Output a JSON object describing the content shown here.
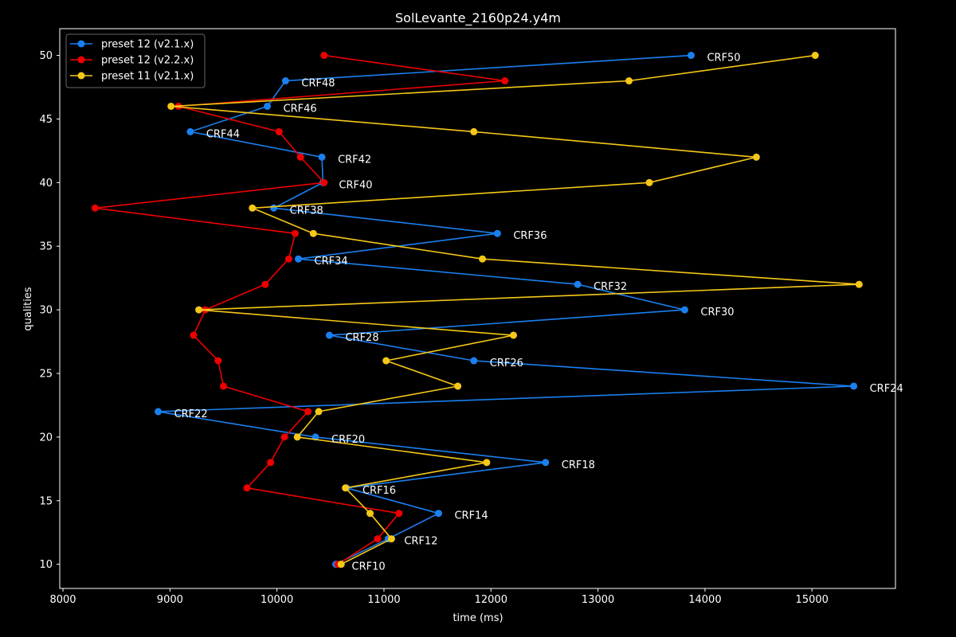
{
  "chart_data": {
    "type": "line",
    "title": "SolLevante_2160p24.y4m",
    "xlabel": "time (ms)",
    "ylabel": "qualities",
    "xlim": [
      7970,
      15780
    ],
    "ylim": [
      8.1,
      52.1
    ],
    "xticks": [
      8000,
      9000,
      10000,
      11000,
      12000,
      13000,
      14000,
      15000
    ],
    "yticks": [
      10,
      15,
      20,
      25,
      30,
      35,
      40,
      45,
      50
    ],
    "legend_position": "top-left",
    "series": [
      {
        "name": "preset 12 (v2.1.x)",
        "color": "#1a80f0",
        "y": [
          50,
          48,
          46,
          44,
          42,
          40,
          38,
          36,
          34,
          32,
          30,
          28,
          26,
          24,
          22,
          20,
          18,
          16,
          14,
          12,
          10
        ],
        "x": [
          13870,
          10080,
          9910,
          9190,
          10420,
          10430,
          9970,
          12060,
          10200,
          12810,
          13810,
          10490,
          11840,
          15390,
          8890,
          10360,
          12510,
          10650,
          11510,
          11040,
          10550
        ]
      },
      {
        "name": "preset 12 (v2.2.x)",
        "color": "#ee0000",
        "y": [
          50,
          48,
          46,
          44,
          42,
          40,
          38,
          36,
          34,
          32,
          30,
          28,
          26,
          24,
          22,
          20,
          18,
          16,
          14,
          12,
          10
        ],
        "x": [
          10440,
          12130,
          9080,
          10020,
          10220,
          10440,
          8300,
          10170,
          10110,
          9890,
          9330,
          9220,
          9450,
          9500,
          10290,
          10070,
          9940,
          9720,
          11140,
          10940,
          10570
        ]
      },
      {
        "name": "preset 11 (v2.1.x)",
        "color": "#f5c818",
        "y": [
          50,
          48,
          46,
          44,
          42,
          40,
          38,
          36,
          34,
          32,
          30,
          28,
          26,
          24,
          22,
          20,
          18,
          16,
          14,
          12,
          10
        ],
        "x": [
          15030,
          13290,
          9010,
          11840,
          14480,
          13480,
          9770,
          10340,
          11920,
          15440,
          9270,
          12210,
          11020,
          11690,
          10390,
          10190,
          11960,
          10640,
          10870,
          11070,
          10600
        ]
      }
    ],
    "annotations": [
      {
        "text": "CRF50",
        "x": 13870,
        "y": 50
      },
      {
        "text": "CRF48",
        "x": 10080,
        "y": 48
      },
      {
        "text": "CRF46",
        "x": 9910,
        "y": 46
      },
      {
        "text": "CRF44",
        "x": 9190,
        "y": 44
      },
      {
        "text": "CRF42",
        "x": 10420,
        "y": 42
      },
      {
        "text": "CRF40",
        "x": 10430,
        "y": 40
      },
      {
        "text": "CRF38",
        "x": 9970,
        "y": 38
      },
      {
        "text": "CRF36",
        "x": 12060,
        "y": 36
      },
      {
        "text": "CRF34",
        "x": 10200,
        "y": 34
      },
      {
        "text": "CRF32",
        "x": 12810,
        "y": 32
      },
      {
        "text": "CRF30",
        "x": 13810,
        "y": 30
      },
      {
        "text": "CRF28",
        "x": 10490,
        "y": 28
      },
      {
        "text": "CRF26",
        "x": 11840,
        "y": 26
      },
      {
        "text": "CRF24",
        "x": 15390,
        "y": 24
      },
      {
        "text": "CRF22",
        "x": 8890,
        "y": 22
      },
      {
        "text": "CRF20",
        "x": 10360,
        "y": 20
      },
      {
        "text": "CRF18",
        "x": 12510,
        "y": 18
      },
      {
        "text": "CRF16",
        "x": 10650,
        "y": 16
      },
      {
        "text": "CRF14",
        "x": 11510,
        "y": 14
      },
      {
        "text": "CRF12",
        "x": 11040,
        "y": 12
      },
      {
        "text": "CRF10",
        "x": 10550,
        "y": 10
      }
    ],
    "colors": {
      "background": "#000000",
      "foreground": "#ffffff"
    }
  }
}
